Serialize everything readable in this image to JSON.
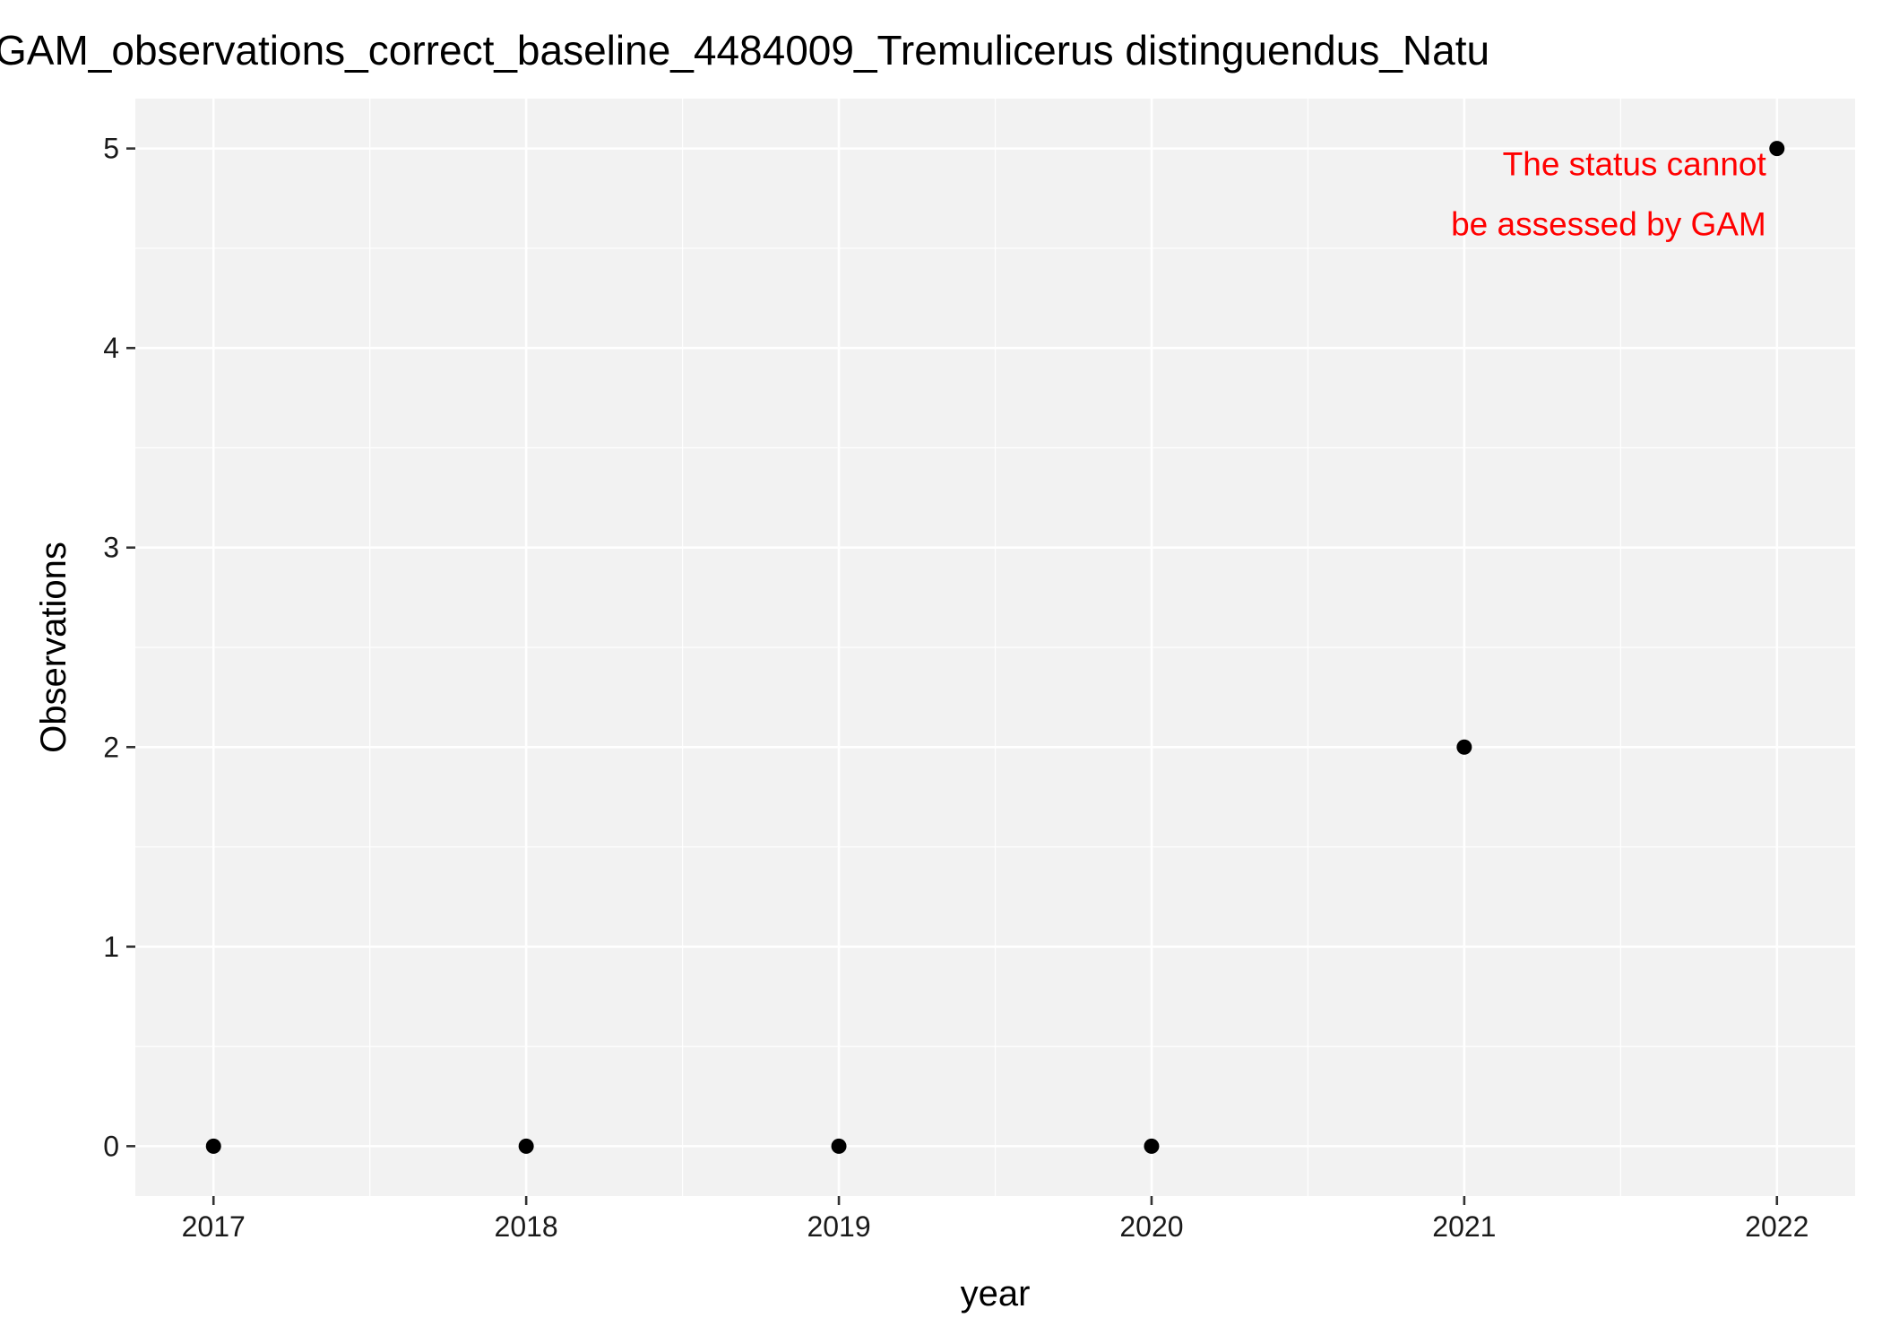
{
  "chart_data": {
    "type": "scatter",
    "title": "GAM_observations_correct_baseline_4484009_Tremulicerus distinguendus_Natu",
    "xlabel": "year",
    "ylabel": "Observations",
    "xlim": [
      2016.75,
      2022.25
    ],
    "ylim": [
      -0.25,
      5.25
    ],
    "x_ticks": [
      "2017",
      "2018",
      "2019",
      "2020",
      "2021",
      "2022"
    ],
    "y_ticks": [
      "0",
      "1",
      "2",
      "3",
      "4",
      "5"
    ],
    "grid": true,
    "series": [
      {
        "name": "observations",
        "x": [
          2017,
          2018,
          2019,
          2020,
          2021,
          2022
        ],
        "y": [
          0,
          0,
          0,
          0,
          2,
          5
        ]
      }
    ],
    "annotation": {
      "lines": [
        "The status cannot",
        "be assessed by GAM"
      ],
      "x": 2022,
      "y": 5,
      "color": "#ff0000",
      "placement": "below-left of last point"
    },
    "colors": {
      "panel_background": "#f2f2f2",
      "grid": "#ffffff",
      "points": "#000000"
    }
  }
}
